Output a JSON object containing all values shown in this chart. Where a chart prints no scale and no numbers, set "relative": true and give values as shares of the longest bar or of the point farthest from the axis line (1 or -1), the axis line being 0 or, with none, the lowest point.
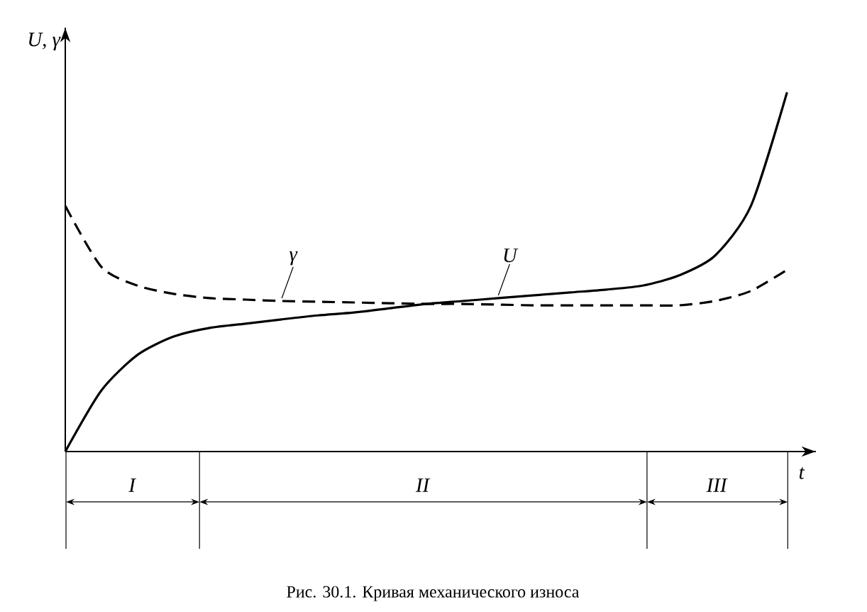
{
  "chart_data": {
    "type": "line",
    "relative": true,
    "xlabel": "t",
    "ylabel": "U, γ",
    "categories": [
      null,
      null,
      null,
      null,
      null,
      null,
      null,
      null,
      null,
      null,
      null,
      null,
      null,
      null,
      null,
      null,
      null,
      null,
      null,
      null,
      null
    ],
    "series": [
      {
        "name": "U",
        "color": "#000000",
        "line_style": "solid",
        "values": [
          0,
          0.17,
          0.269,
          0.32,
          0.344,
          0.356,
          0.368,
          0.379,
          0.387,
          0.399,
          0.411,
          0.419,
          0.427,
          0.435,
          0.443,
          0.451,
          0.462,
          0.49,
          0.545,
          0.684,
          1.0
        ]
      },
      {
        "name": "γ",
        "color": "#000000",
        "line_style": "dashed",
        "values": [
          0.684,
          0.514,
          0.462,
          0.439,
          0.427,
          0.423,
          0.419,
          0.417,
          0.415,
          0.413,
          0.411,
          0.411,
          0.409,
          0.407,
          0.407,
          0.407,
          0.407,
          0.407,
          0.419,
          0.447,
          0.506
        ]
      }
    ],
    "annotations": [
      "I",
      "II",
      "III",
      "Рис. 30.1. Кривая механического износа"
    ]
  }
}
